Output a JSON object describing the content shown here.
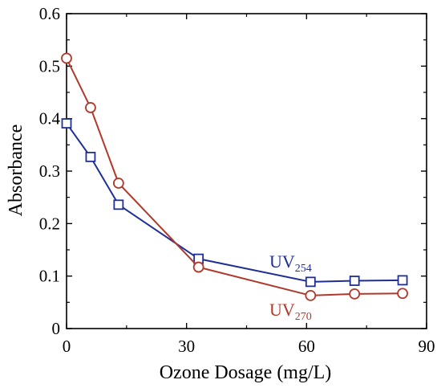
{
  "chart_data": {
    "type": "line",
    "xlabel": "Ozone Dosage (mg/L)",
    "ylabel": "Absorbance",
    "xlim": [
      0,
      90
    ],
    "ylim": [
      0,
      0.6
    ],
    "xticks": [
      "0",
      "30",
      "60",
      "90"
    ],
    "yticks": [
      "0",
      "0.1",
      "0.2",
      "0.3",
      "0.4",
      "0.5",
      "0.6"
    ],
    "grid": false,
    "series": [
      {
        "name": "UV254",
        "label_main": "UV",
        "label_sub": "254",
        "marker": "square",
        "color": "#1f2f96",
        "x": [
          0,
          6,
          13,
          33,
          61,
          72,
          84
        ],
        "y": [
          0.391,
          0.327,
          0.236,
          0.133,
          0.089,
          0.091,
          0.092
        ]
      },
      {
        "name": "UV270",
        "label_main": "UV",
        "label_sub": "270",
        "marker": "circle",
        "color": "#b0392b",
        "x": [
          0,
          6,
          13,
          33,
          61,
          72,
          84
        ],
        "y": [
          0.515,
          0.421,
          0.277,
          0.117,
          0.063,
          0.066,
          0.067
        ]
      }
    ]
  }
}
